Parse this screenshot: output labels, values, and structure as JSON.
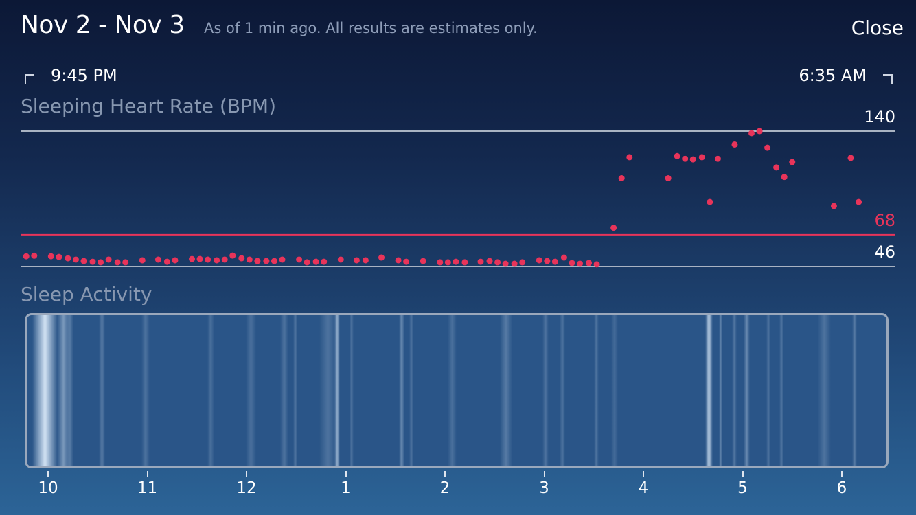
{
  "header": {
    "title": "Nov 2 - Nov 3",
    "subtitle": "As of 1 min ago.  All results are estimates only.",
    "close_label": "Close"
  },
  "range": {
    "start_time": "9:45 PM",
    "end_time": "6:35 AM"
  },
  "heart_rate": {
    "label": "Sleeping Heart Rate (BPM)",
    "max_label": "140",
    "avg_label": "68",
    "min_label": "46"
  },
  "sleep_activity": {
    "label": "Sleep Activity"
  },
  "colors": {
    "accent": "#e8345a",
    "gridline": "#a9b3c2",
    "text": "#ffffff"
  },
  "chart_data": {
    "type": "scatter",
    "title": "Sleeping Heart Rate (BPM)",
    "x_unit": "hours after 10 PM (clock)",
    "y_unit": "BPM",
    "ylim": [
      46,
      140
    ],
    "reference_lines": [
      140,
      68,
      46
    ],
    "hour_ticks": [
      "10",
      "11",
      "12",
      "1",
      "2",
      "3",
      "4",
      "5",
      "6"
    ],
    "points": [
      {
        "x": -0.22,
        "y": 53.1
      },
      {
        "x": -0.14,
        "y": 53.5
      },
      {
        "x": 0.03,
        "y": 53.1
      },
      {
        "x": 0.11,
        "y": 52.6
      },
      {
        "x": 0.2,
        "y": 51.7
      },
      {
        "x": 0.28,
        "y": 50.8
      },
      {
        "x": 0.36,
        "y": 49.8
      },
      {
        "x": 0.45,
        "y": 49.3
      },
      {
        "x": 0.53,
        "y": 48.9
      },
      {
        "x": 0.61,
        "y": 50.8
      },
      {
        "x": 0.7,
        "y": 48.9
      },
      {
        "x": 0.78,
        "y": 48.9
      },
      {
        "x": 0.95,
        "y": 50.3
      },
      {
        "x": 1.11,
        "y": 50.8
      },
      {
        "x": 1.2,
        "y": 49.3
      },
      {
        "x": 1.28,
        "y": 50.3
      },
      {
        "x": 1.45,
        "y": 51.2
      },
      {
        "x": 1.53,
        "y": 51.2
      },
      {
        "x": 1.61,
        "y": 50.8
      },
      {
        "x": 1.7,
        "y": 50.3
      },
      {
        "x": 1.78,
        "y": 50.8
      },
      {
        "x": 1.86,
        "y": 53.6
      },
      {
        "x": 1.95,
        "y": 51.7
      },
      {
        "x": 2.03,
        "y": 50.8
      },
      {
        "x": 2.11,
        "y": 49.8
      },
      {
        "x": 2.2,
        "y": 49.8
      },
      {
        "x": 2.28,
        "y": 49.8
      },
      {
        "x": 2.36,
        "y": 50.8
      },
      {
        "x": 2.53,
        "y": 50.8
      },
      {
        "x": 2.61,
        "y": 48.9
      },
      {
        "x": 2.7,
        "y": 49.3
      },
      {
        "x": 2.78,
        "y": 49.3
      },
      {
        "x": 2.95,
        "y": 50.8
      },
      {
        "x": 3.11,
        "y": 50.3
      },
      {
        "x": 3.2,
        "y": 50.3
      },
      {
        "x": 3.36,
        "y": 52.2
      },
      {
        "x": 3.53,
        "y": 50.3
      },
      {
        "x": 3.61,
        "y": 49.3
      },
      {
        "x": 3.78,
        "y": 49.8
      },
      {
        "x": 3.95,
        "y": 48.9
      },
      {
        "x": 4.03,
        "y": 48.9
      },
      {
        "x": 4.11,
        "y": 49.3
      },
      {
        "x": 4.2,
        "y": 48.9
      },
      {
        "x": 4.36,
        "y": 49.3
      },
      {
        "x": 4.45,
        "y": 49.8
      },
      {
        "x": 4.53,
        "y": 48.9
      },
      {
        "x": 4.61,
        "y": 47.9
      },
      {
        "x": 4.7,
        "y": 47.9
      },
      {
        "x": 4.78,
        "y": 48.9
      },
      {
        "x": 4.95,
        "y": 50.3
      },
      {
        "x": 5.03,
        "y": 49.8
      },
      {
        "x": 5.11,
        "y": 49.3
      },
      {
        "x": 5.2,
        "y": 52.2
      },
      {
        "x": 5.28,
        "y": 48.4
      },
      {
        "x": 5.36,
        "y": 47.9
      },
      {
        "x": 5.45,
        "y": 48.4
      },
      {
        "x": 5.53,
        "y": 47.5
      },
      {
        "x": 5.7,
        "y": 72.9
      },
      {
        "x": 5.78,
        "y": 107.3
      },
      {
        "x": 5.86,
        "y": 121.9
      },
      {
        "x": 6.25,
        "y": 107.3
      },
      {
        "x": 6.34,
        "y": 122.7
      },
      {
        "x": 6.42,
        "y": 120.8
      },
      {
        "x": 6.5,
        "y": 120.4
      },
      {
        "x": 6.59,
        "y": 121.9
      },
      {
        "x": 6.67,
        "y": 90.8
      },
      {
        "x": 6.75,
        "y": 120.8
      },
      {
        "x": 6.92,
        "y": 130.7
      },
      {
        "x": 7.09,
        "y": 138.6
      },
      {
        "x": 7.17,
        "y": 140.0
      },
      {
        "x": 7.25,
        "y": 128.5
      },
      {
        "x": 7.34,
        "y": 114.8
      },
      {
        "x": 7.42,
        "y": 108.2
      },
      {
        "x": 7.5,
        "y": 118.5
      },
      {
        "x": 7.92,
        "y": 88.0
      },
      {
        "x": 8.09,
        "y": 121.4
      },
      {
        "x": 8.17,
        "y": 90.8
      }
    ]
  },
  "sleep_stripes": [
    {
      "x": 0.6,
      "w": 3.0,
      "a": 0.95
    },
    {
      "x": 3.5,
      "w": 1.5,
      "a": 0.45
    },
    {
      "x": 4.6,
      "w": 0.8,
      "a": 0.25
    },
    {
      "x": 8.4,
      "w": 0.7,
      "a": 0.25
    },
    {
      "x": 13.3,
      "w": 1.0,
      "a": 0.2
    },
    {
      "x": 21.0,
      "w": 0.8,
      "a": 0.18
    },
    {
      "x": 25.5,
      "w": 1.2,
      "a": 0.18
    },
    {
      "x": 29.5,
      "w": 0.9,
      "a": 0.2
    },
    {
      "x": 31.0,
      "w": 0.5,
      "a": 0.22
    },
    {
      "x": 34.0,
      "w": 2.0,
      "a": 0.2
    },
    {
      "x": 35.8,
      "w": 0.6,
      "a": 0.6
    },
    {
      "x": 37.5,
      "w": 0.5,
      "a": 0.2
    },
    {
      "x": 43.3,
      "w": 0.6,
      "a": 0.35
    },
    {
      "x": 44.5,
      "w": 0.5,
      "a": 0.2
    },
    {
      "x": 49.0,
      "w": 1.0,
      "a": 0.18
    },
    {
      "x": 55.0,
      "w": 1.5,
      "a": 0.25
    },
    {
      "x": 60.0,
      "w": 0.7,
      "a": 0.2
    },
    {
      "x": 62.0,
      "w": 0.6,
      "a": 0.2
    },
    {
      "x": 66.0,
      "w": 0.5,
      "a": 0.2
    },
    {
      "x": 68.0,
      "w": 0.8,
      "a": 0.15
    },
    {
      "x": 78.9,
      "w": 0.9,
      "a": 0.8
    },
    {
      "x": 80.5,
      "w": 0.4,
      "a": 0.3
    },
    {
      "x": 82.0,
      "w": 0.6,
      "a": 0.22
    },
    {
      "x": 83.4,
      "w": 0.7,
      "a": 0.35
    },
    {
      "x": 86.0,
      "w": 0.5,
      "a": 0.2
    },
    {
      "x": 87.5,
      "w": 0.5,
      "a": 0.22
    },
    {
      "x": 92.0,
      "w": 1.5,
      "a": 0.2
    },
    {
      "x": 96.0,
      "w": 0.6,
      "a": 0.25
    }
  ]
}
